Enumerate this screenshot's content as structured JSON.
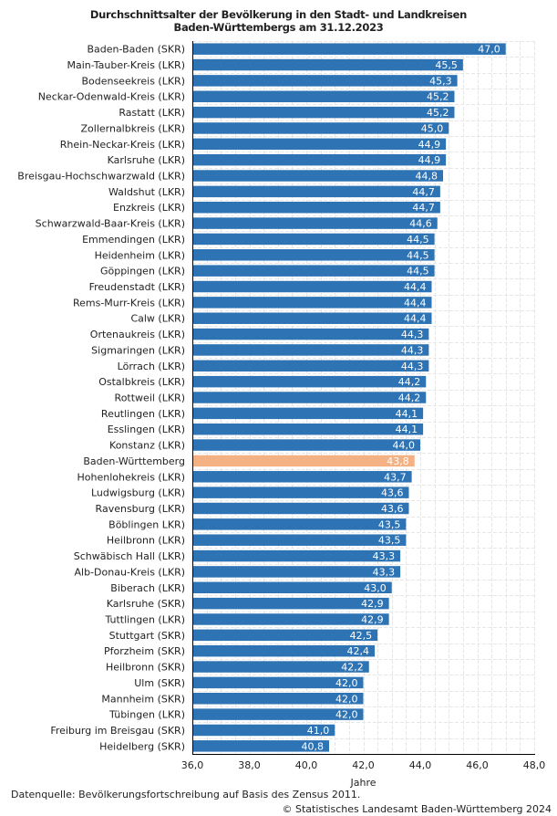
{
  "chart_data": {
    "type": "bar",
    "orientation": "horizontal",
    "title": [
      "Durchschnittsalter der Bevölkerung in den Stadt- und Landkreisen",
      "Baden-Württembergs am 31.12.2023"
    ],
    "xlabel": "Jahre",
    "ylabel": "",
    "xlim": [
      36.0,
      48.0
    ],
    "xticks": [
      "36,0",
      "38,0",
      "40,0",
      "42,0",
      "44,0",
      "46,0",
      "48,0"
    ],
    "xtick_values": [
      36,
      38,
      40,
      42,
      44,
      46,
      48
    ],
    "grid": true,
    "legend": "none",
    "colors": {
      "bar": "#2e74b5",
      "highlight": "#f4b183",
      "grid": "#e6e6e6",
      "axis": "#000000"
    },
    "highlight_category": "Baden-Württemberg",
    "categories": [
      "Baden-Baden (SKR)",
      "Main-Tauber-Kreis (LKR)",
      "Bodenseekreis (LKR)",
      "Neckar-Odenwald-Kreis (LKR)",
      "Rastatt (LKR)",
      "Zollernalbkreis (LKR)",
      "Rhein-Neckar-Kreis (LKR)",
      "Karlsruhe (LKR)",
      "Breisgau-Hochschwarzwald (LKR)",
      "Waldshut (LKR)",
      "Enzkreis (LKR)",
      "Schwarzwald-Baar-Kreis (LKR)",
      "Emmendingen (LKR)",
      "Heidenheim (LKR)",
      "Göppingen (LKR)",
      "Freudenstadt (LKR)",
      "Rems-Murr-Kreis  (LKR)",
      "Calw (LKR)",
      "Ortenaukreis (LKR)",
      "Sigmaringen (LKR)",
      "Lörrach (LKR)",
      "Ostalbkreis (LKR)",
      "Rottweil (LKR)",
      "Reutlingen (LKR)",
      "Esslingen (LKR)",
      "Konstanz (LKR)",
      "Baden-Württemberg",
      "Hohenlohekreis (LKR)",
      "Ludwigsburg (LKR)",
      "Ravensburg (LKR)",
      "Böblingen LKR)",
      "Heilbronn (LKR)",
      "Schwäbisch Hall (LKR)",
      "Alb-Donau-Kreis (LKR)",
      "Biberach (LKR)",
      "Karlsruhe (SKR)",
      "Tuttlingen (LKR)",
      "Stuttgart (SKR)",
      "Pforzheim (SKR)",
      "Heilbronn (SKR)",
      "Ulm (SKR)",
      "Mannheim (SKR)",
      "Tübingen (LKR)",
      "Freiburg im Breisgau (SKR)",
      "Heidelberg (SKR)"
    ],
    "values": [
      47.0,
      45.5,
      45.3,
      45.2,
      45.2,
      45.0,
      44.9,
      44.9,
      44.8,
      44.7,
      44.7,
      44.6,
      44.5,
      44.5,
      44.5,
      44.4,
      44.4,
      44.4,
      44.3,
      44.3,
      44.3,
      44.2,
      44.2,
      44.1,
      44.1,
      44.0,
      43.8,
      43.7,
      43.6,
      43.6,
      43.5,
      43.5,
      43.3,
      43.3,
      43.0,
      42.9,
      42.9,
      42.5,
      42.4,
      42.2,
      42.0,
      42.0,
      42.0,
      41.0,
      40.8
    ],
    "value_labels": [
      "47,0",
      "45,5",
      "45,3",
      "45,2",
      "45,2",
      "45,0",
      "44,9",
      "44,9",
      "44,8",
      "44,7",
      "44,7",
      "44,6",
      "44,5",
      "44,5",
      "44,5",
      "44,4",
      "44,4",
      "44,4",
      "44,3",
      "44,3",
      "44,3",
      "44,2",
      "44,2",
      "44,1",
      "44,1",
      "44,0",
      "43,8",
      "43,7",
      "43,6",
      "43,6",
      "43,5",
      "43,5",
      "43,3",
      "43,3",
      "43,0",
      "42,9",
      "42,9",
      "42,5",
      "42,4",
      "42,2",
      "42,0",
      "42,0",
      "42,0",
      "41,0",
      "40,8"
    ]
  },
  "footer": {
    "source": "Datenquelle: Bevölkerungsfortschreibung auf Basis des Zensus 2011.",
    "copyright": "© Statistisches Landesamt Baden-Württemberg 2024"
  }
}
